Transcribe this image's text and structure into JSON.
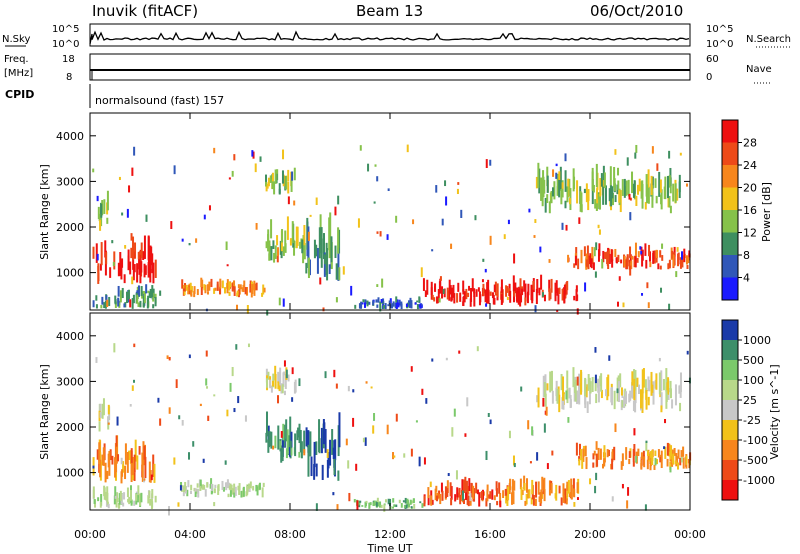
{
  "header": {
    "station": "Inuvik (fitACF)",
    "beam": "Beam 13",
    "date": "06/Oct/2010"
  },
  "strip_panels": {
    "nsky": {
      "label": "N.Sky",
      "tick_top": "10^5",
      "tick_bottom": "10^0"
    },
    "nsearch": {
      "label": "N.Search",
      "tick_top": "10^5",
      "tick_bottom": "10^0"
    },
    "freq": {
      "label_line1": "Freq.",
      "label_line2": "[MHz]",
      "tick_top": "18",
      "tick_bottom": "8"
    },
    "nave": {
      "label": "Nave",
      "tick_top": "60",
      "tick_bottom": "0"
    },
    "cpid": {
      "label": "CPID",
      "program": "normalsound (fast) 157"
    }
  },
  "chart_data": [
    {
      "type": "heatmap",
      "parameter": "power",
      "ylabel": "Slant Range [km]",
      "ylim": [
        180,
        4500
      ],
      "yticks": [
        1000,
        2000,
        3000,
        4000
      ],
      "xlim_hours": [
        0,
        24
      ],
      "colorbar": {
        "label": "Power [dB]",
        "ticks": [
          "4",
          "8",
          "12",
          "16",
          "20",
          "24",
          "28"
        ],
        "colors": [
          "#1a1aff",
          "#3057b8",
          "#3e8f60",
          "#86c24a",
          "#f2c21a",
          "#f7861c",
          "#ee4a18",
          "#ee1010"
        ]
      }
    },
    {
      "type": "heatmap",
      "parameter": "velocity",
      "ylabel": "Slant Range [km]",
      "xlabel": "Time UT",
      "ylim": [
        180,
        4500
      ],
      "yticks": [
        1000,
        2000,
        3000,
        4000
      ],
      "xlim_hours": [
        0,
        24
      ],
      "xticks": [
        "00:00",
        "04:00",
        "08:00",
        "12:00",
        "16:00",
        "20:00",
        "00:00"
      ],
      "colorbar": {
        "label": "Velocity [m s^-1]",
        "ticks": [
          "1000",
          "500",
          "100",
          "25",
          "-25",
          "-100",
          "-500",
          "-1000"
        ],
        "colors": [
          "#1a3aa8",
          "#3d8f6a",
          "#7bc96b",
          "#b8d88a",
          "#c8c8c8",
          "#f2c21a",
          "#f7861c",
          "#ee4a18",
          "#ee1010"
        ]
      }
    }
  ]
}
